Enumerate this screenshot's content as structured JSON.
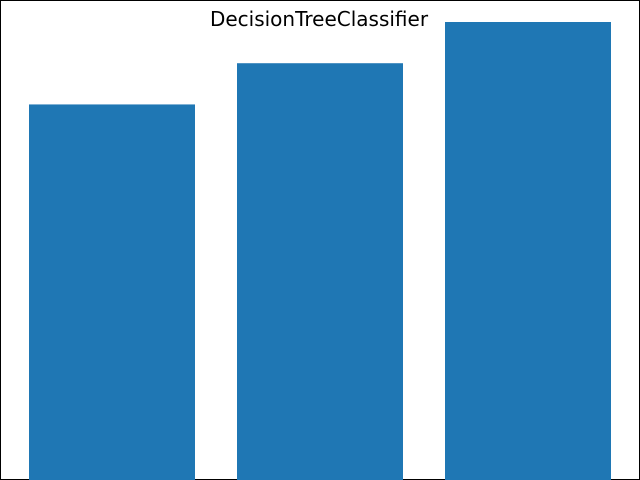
{
  "chart_data": {
    "type": "bar",
    "title": "DecisionTreeClassifier",
    "xlabel": "",
    "ylabel": "",
    "categories": [
      "",
      "",
      ""
    ],
    "values": [
      0.82,
      0.91,
      1.0
    ],
    "ylim": [
      0,
      1.0
    ],
    "grid": false,
    "bar_color": "#1f77b4"
  },
  "colors": {
    "frame": "#000000",
    "background": "#ffffff"
  }
}
